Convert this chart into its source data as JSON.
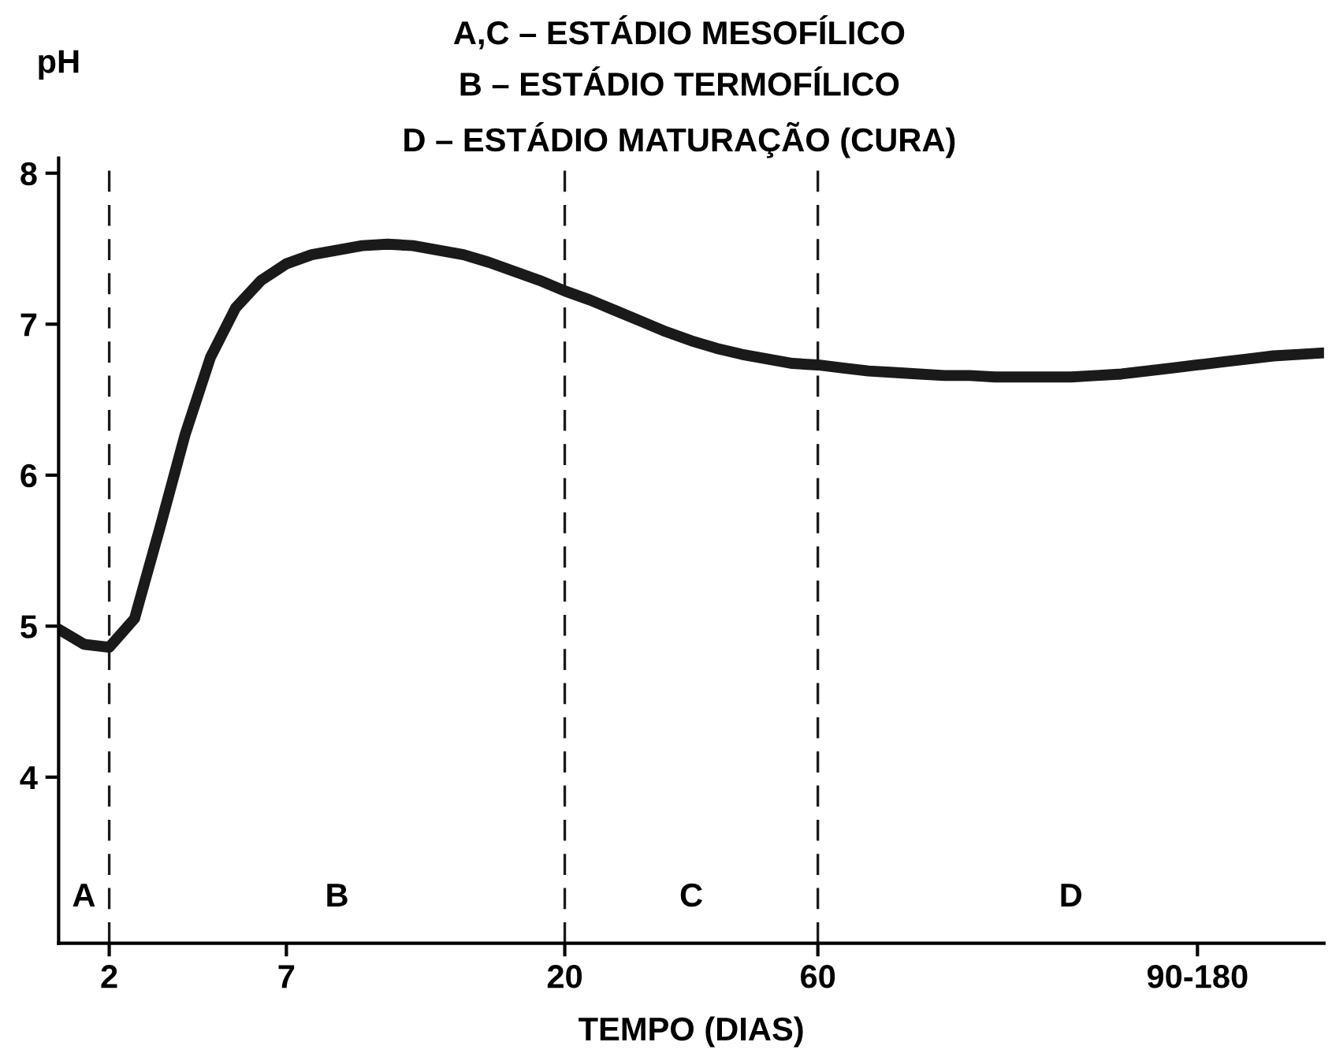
{
  "chart_data": {
    "type": "line",
    "xlabel": "TEMPO (DIAS)",
    "ylabel": "pH",
    "categories": [
      null,
      null,
      "2",
      null,
      null,
      null,
      null,
      null,
      null,
      "7",
      null,
      null,
      null,
      null,
      null,
      null,
      null,
      null,
      null,
      null,
      "20",
      null,
      null,
      null,
      null,
      null,
      null,
      null,
      null,
      null,
      "60",
      null,
      null,
      null,
      null,
      null,
      null,
      null,
      null,
      null,
      null,
      null,
      null,
      null,
      null,
      "90-180",
      null,
      null,
      null,
      null,
      null
    ],
    "series": [
      {
        "color": "#1a1a1a",
        "values": [
          4.98,
          4.88,
          4.86,
          5.05,
          5.65,
          6.27,
          6.78,
          7.11,
          7.29,
          7.4,
          7.46,
          7.49,
          7.52,
          7.53,
          7.52,
          7.49,
          7.46,
          7.41,
          7.35,
          7.29,
          7.22,
          7.16,
          7.09,
          7.02,
          6.95,
          6.89,
          6.84,
          6.8,
          6.77,
          6.74,
          6.73,
          6.71,
          6.69,
          6.68,
          6.67,
          6.66,
          6.66,
          6.65,
          6.65,
          6.65,
          6.65,
          6.66,
          6.67,
          6.69,
          6.71,
          6.73,
          6.75,
          6.77,
          6.79,
          6.8,
          6.81
        ]
      }
    ],
    "ylim": [
      2.9,
      8.1
    ],
    "yticks": [
      4,
      5,
      6,
      7,
      8
    ],
    "ref_lines": [
      {
        "axis": "x",
        "value": "2",
        "line_style": "dashed",
        "color": "#1a1a1a"
      },
      {
        "axis": "x",
        "value": "20",
        "line_style": "dashed",
        "color": "#1a1a1a"
      },
      {
        "axis": "x",
        "value": "60",
        "line_style": "dashed",
        "color": "#1a1a1a"
      }
    ],
    "annotations": [
      "A,C – ESTÁDIO MESOFÍLICO",
      "B – ESTÁDIO TERMOFÍLICO",
      "D – ESTÁDIO MATURAÇÃO (CURA)",
      "A",
      "B",
      "C",
      "D"
    ],
    "grid": false,
    "legend": false,
    "marker": "none",
    "line_style": "solid"
  }
}
